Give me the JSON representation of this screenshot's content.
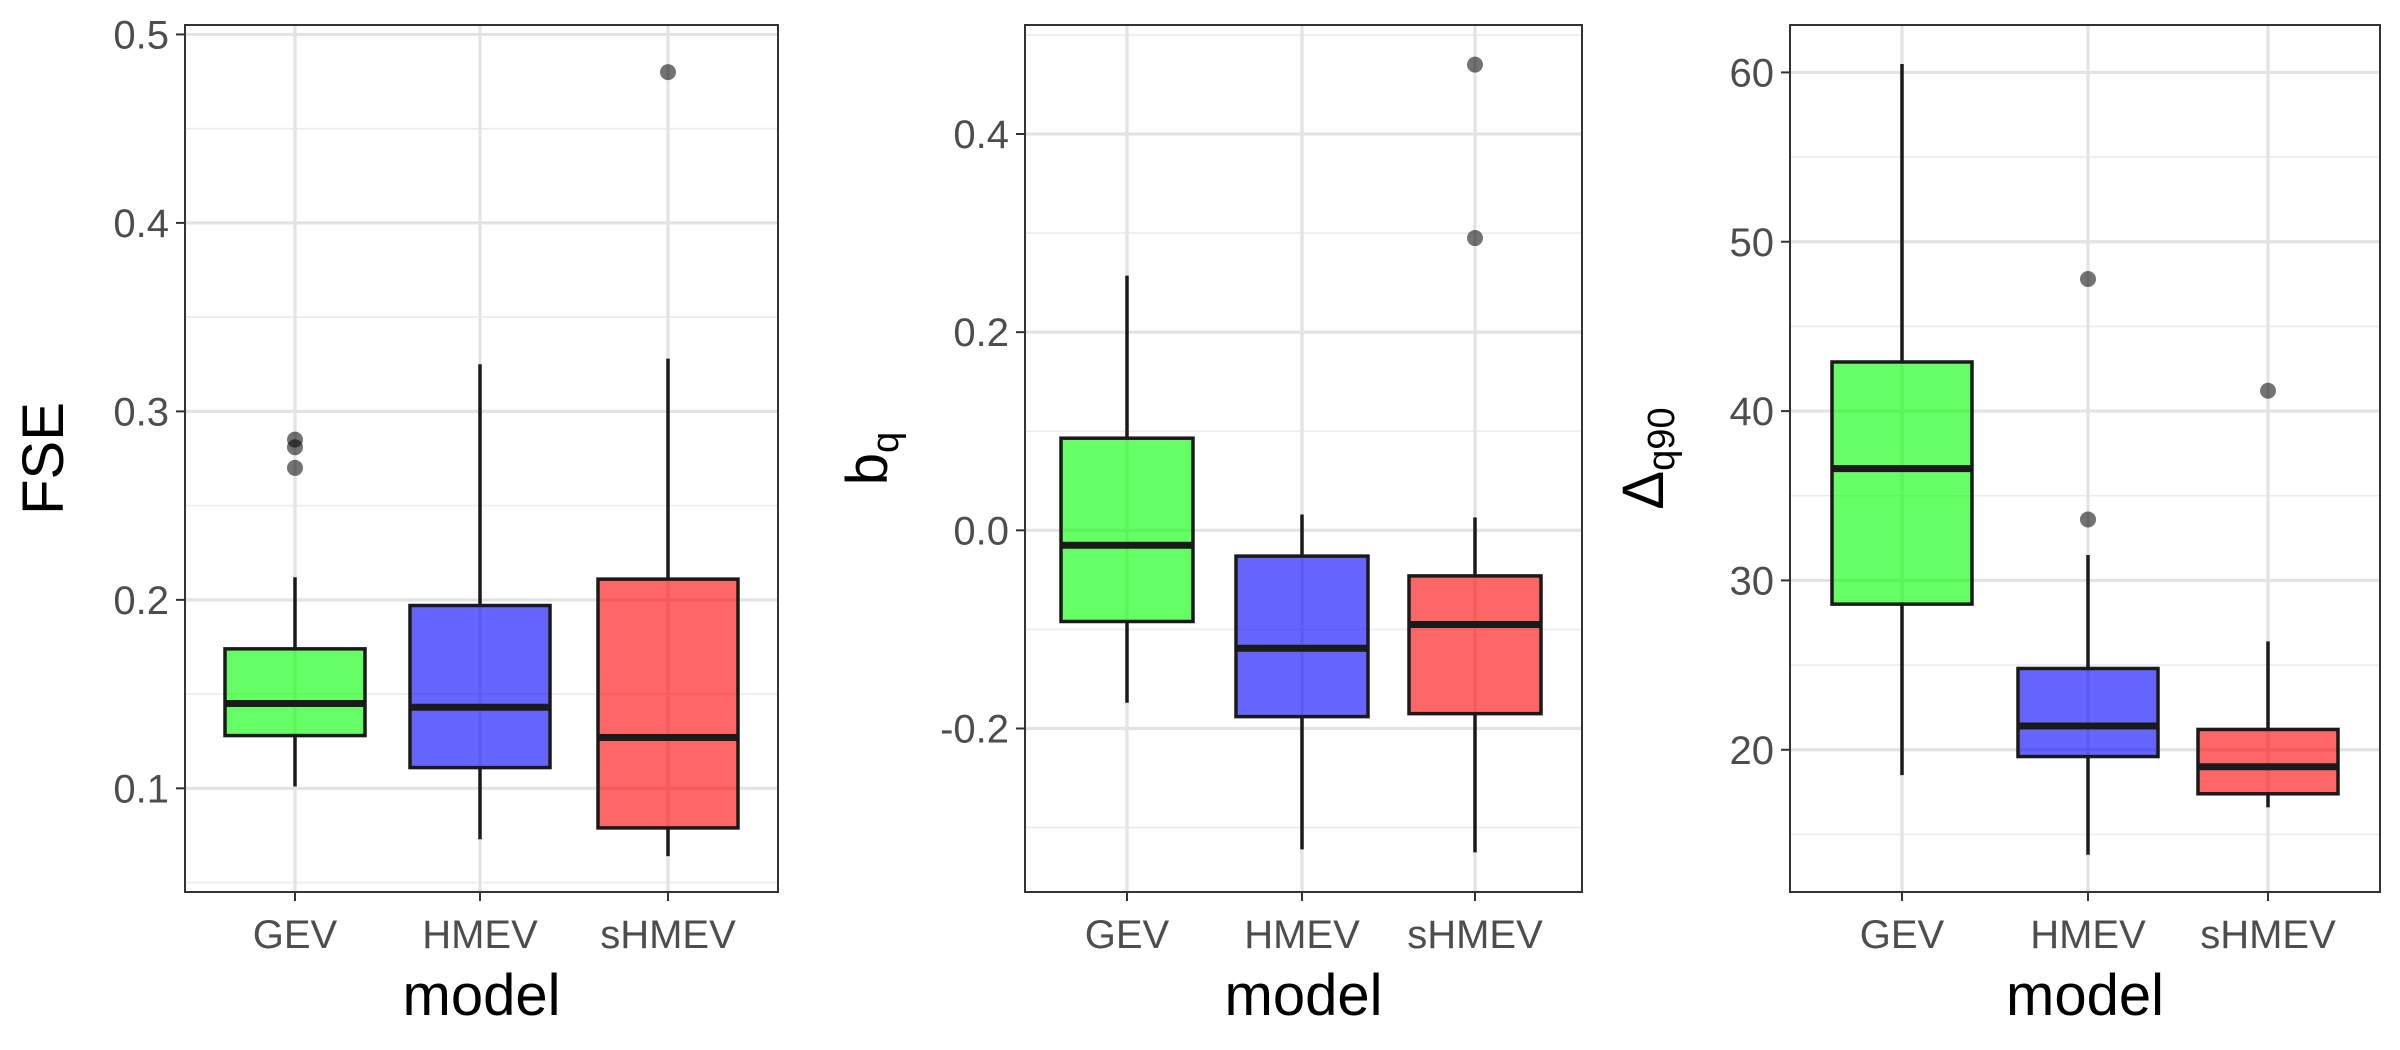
{
  "chart_data": [
    {
      "type": "boxplot",
      "xlabel": "model",
      "ylabel": "FSE",
      "ylim": [
        0.045,
        0.505
      ],
      "yticks": [
        0.1,
        0.2,
        0.3,
        0.4,
        0.5
      ],
      "ytick_labels": [
        "0.1",
        "0.2",
        "0.3",
        "0.4",
        "0.5"
      ],
      "categories": [
        "GEV",
        "HMEV",
        "sHMEV"
      ],
      "boxes": [
        {
          "name": "GEV",
          "color": "#00ff00",
          "whisker_low": 0.101,
          "q1": 0.128,
          "median": 0.145,
          "q3": 0.174,
          "whisker_high": 0.212,
          "outliers": [
            0.27,
            0.281,
            0.285
          ]
        },
        {
          "name": "HMEV",
          "color": "#0000ff",
          "whisker_low": 0.073,
          "q1": 0.111,
          "median": 0.143,
          "q3": 0.197,
          "whisker_high": 0.325,
          "outliers": []
        },
        {
          "name": "sHMEV",
          "color": "#ff0000",
          "whisker_low": 0.064,
          "q1": 0.079,
          "median": 0.127,
          "q3": 0.211,
          "whisker_high": 0.328,
          "outliers": [
            0.48
          ]
        }
      ]
    },
    {
      "type": "boxplot",
      "xlabel": "model",
      "ylabel": "b",
      "ylabel_sub": "q",
      "ylim": [
        -0.365,
        0.51
      ],
      "yticks": [
        -0.2,
        0.0,
        0.2,
        0.4
      ],
      "ytick_labels": [
        "-0.2",
        "0.0",
        "0.2",
        "0.4"
      ],
      "categories": [
        "GEV",
        "HMEV",
        "sHMEV"
      ],
      "boxes": [
        {
          "name": "GEV",
          "color": "#00ff00",
          "whisker_low": -0.174,
          "q1": -0.092,
          "median": -0.015,
          "q3": 0.093,
          "whisker_high": 0.257,
          "outliers": []
        },
        {
          "name": "HMEV",
          "color": "#0000ff",
          "whisker_low": -0.322,
          "q1": -0.188,
          "median": -0.119,
          "q3": -0.026,
          "whisker_high": 0.016,
          "outliers": []
        },
        {
          "name": "sHMEV",
          "color": "#ff0000",
          "whisker_low": -0.325,
          "q1": -0.185,
          "median": -0.095,
          "q3": -0.046,
          "whisker_high": 0.013,
          "outliers": [
            0.295,
            0.47
          ]
        }
      ]
    },
    {
      "type": "boxplot",
      "xlabel": "model",
      "ylabel": "Δ",
      "ylabel_sub": "q90",
      "ylim": [
        11.6,
        62.8
      ],
      "yticks": [
        20,
        30,
        40,
        50,
        60
      ],
      "ytick_labels": [
        "20",
        "30",
        "40",
        "50",
        "60"
      ],
      "categories": [
        "GEV",
        "HMEV",
        "sHMEV"
      ],
      "boxes": [
        {
          "name": "GEV",
          "color": "#00ff00",
          "whisker_low": 18.5,
          "q1": 28.6,
          "median": 36.6,
          "q3": 42.9,
          "whisker_high": 60.5,
          "outliers": []
        },
        {
          "name": "HMEV",
          "color": "#0000ff",
          "whisker_low": 13.8,
          "q1": 19.6,
          "median": 21.4,
          "q3": 24.8,
          "whisker_high": 31.5,
          "outliers": [
            33.6,
            47.8
          ]
        },
        {
          "name": "sHMEV",
          "color": "#ff0000",
          "whisker_low": 16.6,
          "q1": 17.4,
          "median": 19.0,
          "q3": 21.2,
          "whisker_high": 26.4,
          "outliers": [
            41.2
          ]
        }
      ]
    }
  ]
}
